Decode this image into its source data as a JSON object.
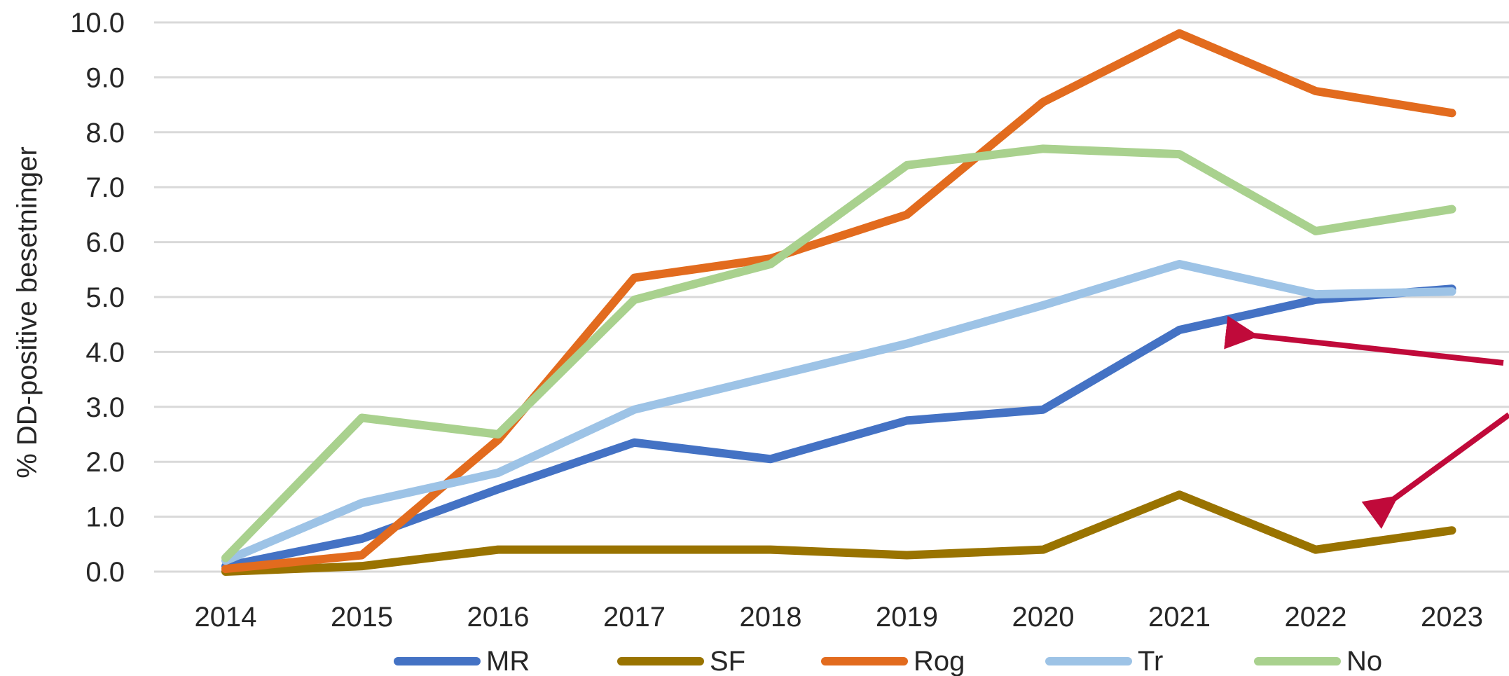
{
  "chart_data": {
    "type": "line",
    "title": "",
    "xlabel": "",
    "ylabel": "% DD-positive besetninger",
    "x": [
      "2014",
      "2015",
      "2016",
      "2017",
      "2018",
      "2019",
      "2020",
      "2021",
      "2022",
      "2023"
    ],
    "ylim": [
      0,
      10
    ],
    "yticks": [
      "0.0",
      "1.0",
      "2.0",
      "3.0",
      "4.0",
      "5.0",
      "6.0",
      "7.0",
      "8.0",
      "9.0",
      "10.0"
    ],
    "grid": "horizontal",
    "legend": "bottom",
    "series": [
      {
        "name": "MR",
        "color": "#4472C4",
        "values": [
          0.1,
          0.6,
          1.5,
          2.35,
          2.05,
          2.75,
          2.95,
          4.4,
          4.95,
          5.15
        ]
      },
      {
        "name": "SF",
        "color": "#997300",
        "values": [
          0.0,
          0.1,
          0.4,
          0.4,
          0.4,
          0.3,
          0.4,
          1.4,
          0.4,
          0.75
        ]
      },
      {
        "name": "Rog",
        "color": "#E26B1E",
        "values": [
          0.05,
          0.3,
          2.4,
          5.35,
          5.7,
          6.5,
          8.55,
          9.8,
          8.75,
          8.35
        ]
      },
      {
        "name": "Tr",
        "color": "#9DC3E6",
        "values": [
          0.2,
          1.25,
          1.8,
          2.95,
          3.55,
          4.15,
          4.85,
          5.6,
          5.05,
          5.1
        ]
      },
      {
        "name": "No",
        "color": "#A9D18E",
        "values": [
          0.25,
          2.8,
          2.5,
          4.95,
          5.6,
          7.4,
          7.7,
          7.6,
          6.2,
          6.6
        ]
      }
    ],
    "annotations": [
      {
        "type": "arrow",
        "color": "#C00A3A",
        "points_to": {
          "series": "MR",
          "x": "2021"
        }
      },
      {
        "type": "arrow",
        "color": "#C00A3A",
        "points_to": {
          "series": "SF",
          "x": "2023"
        }
      }
    ]
  }
}
